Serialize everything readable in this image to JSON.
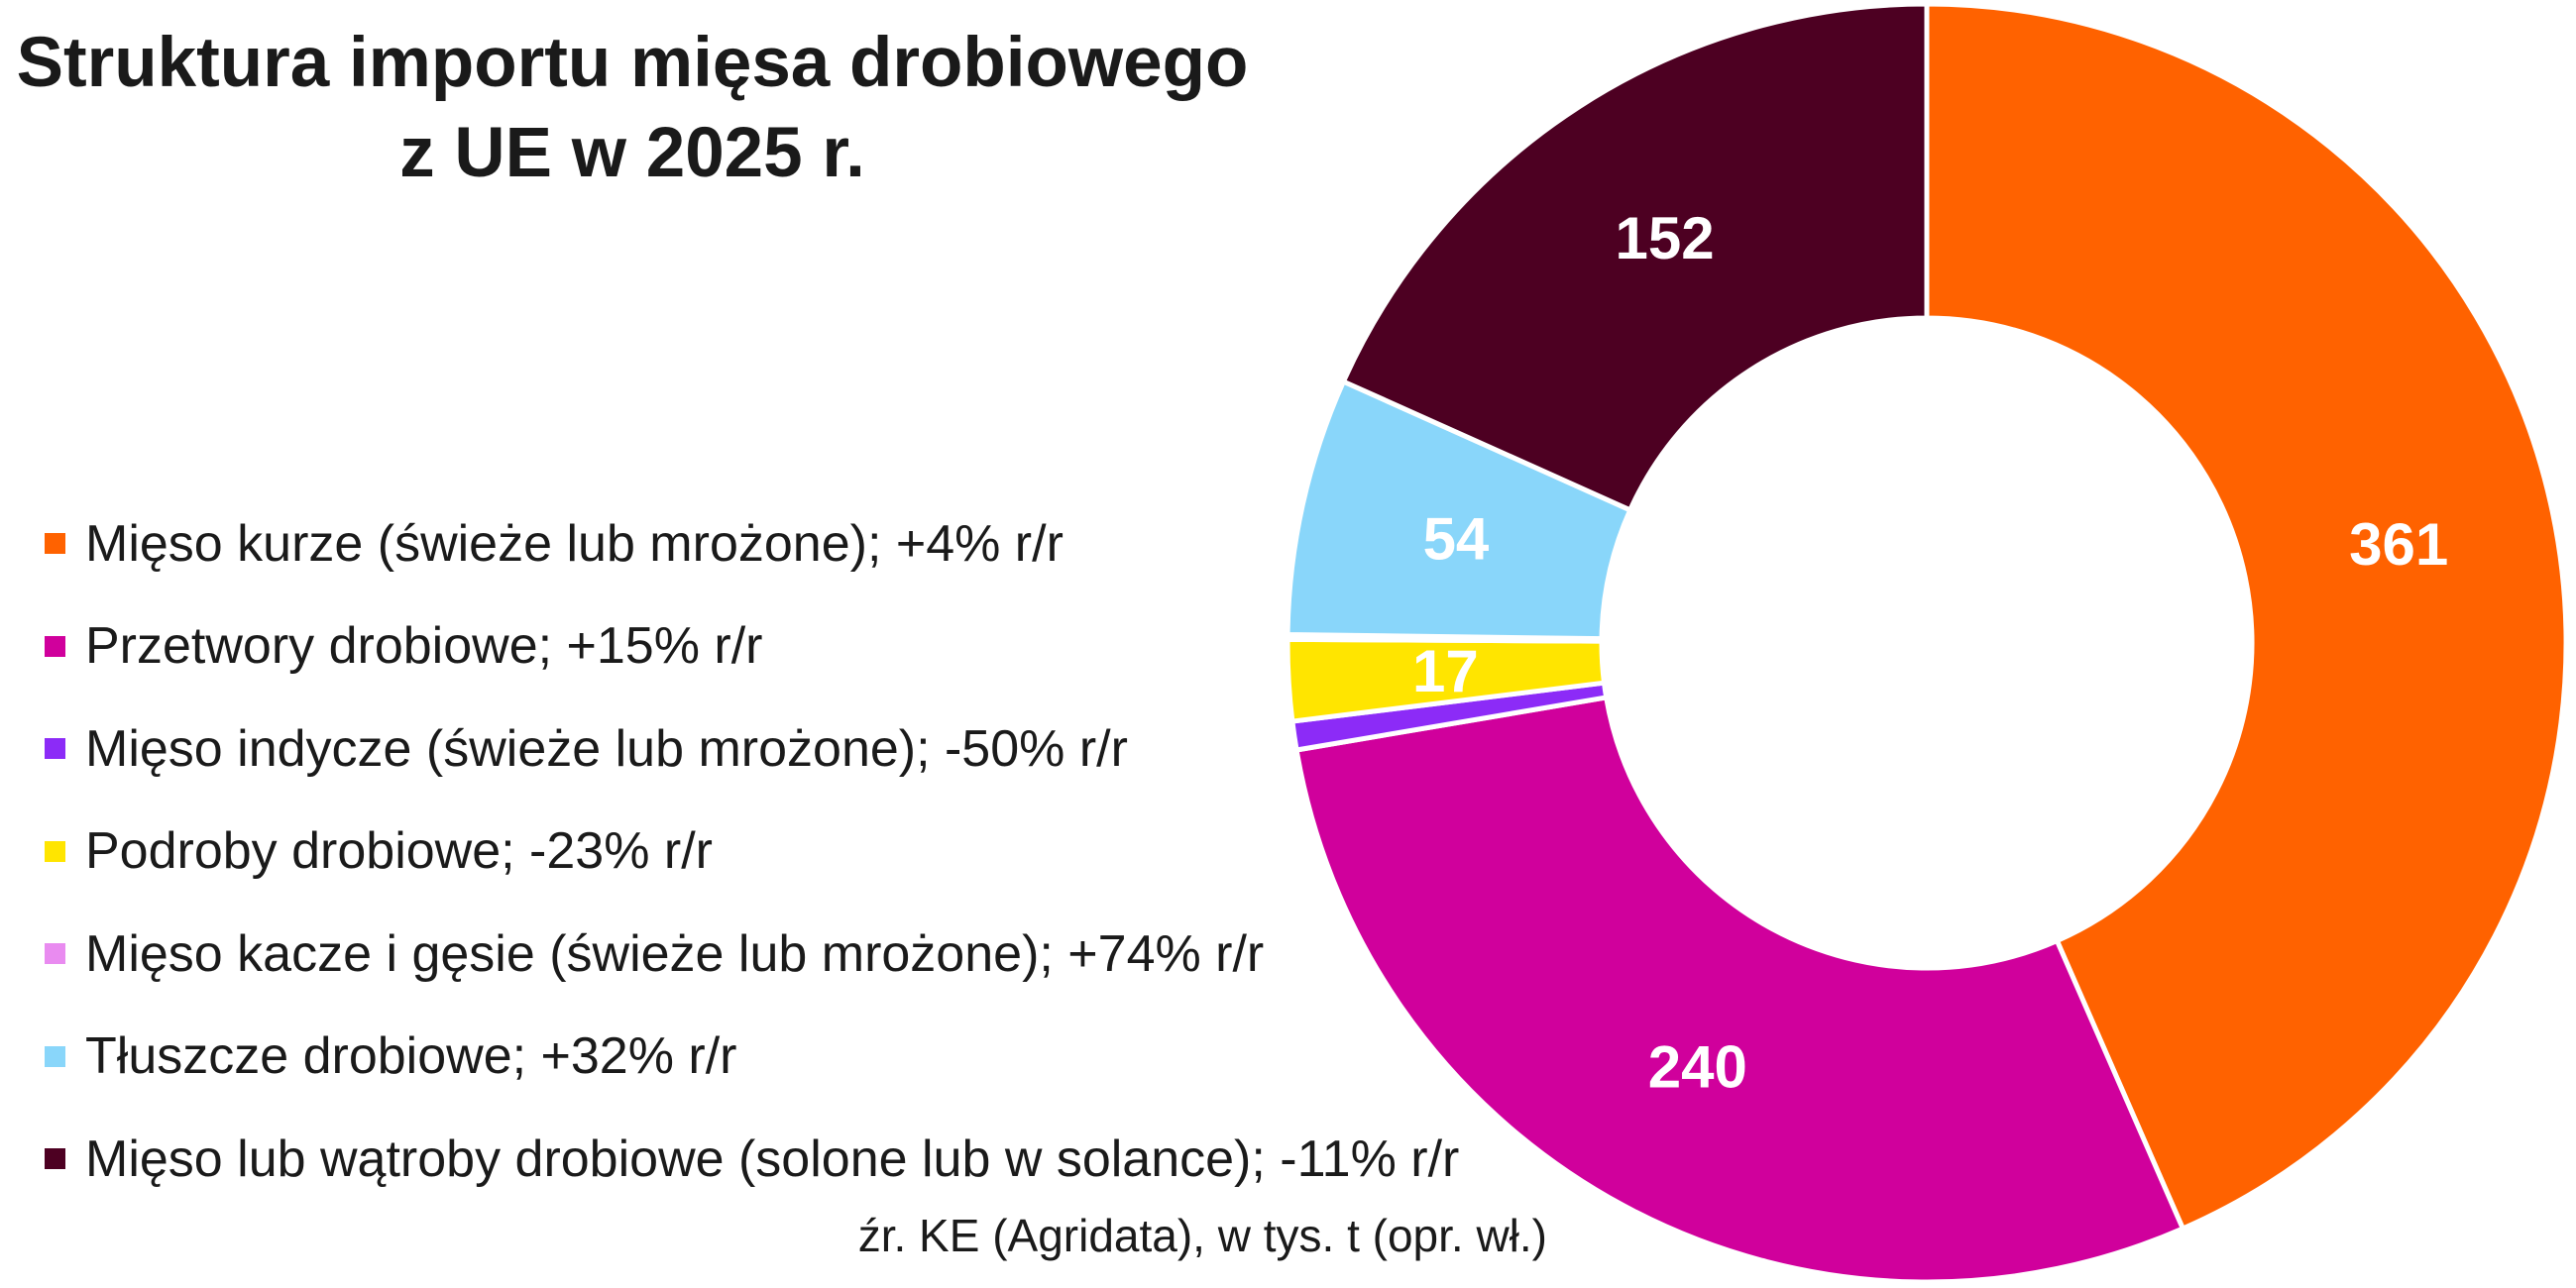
{
  "chart_data": {
    "type": "pie",
    "variant": "donut",
    "start": "top",
    "direction": "clockwise",
    "legend_position": "left",
    "title_lines": [
      "Struktura importu mięsa drobiowego",
      "z UE w 2025 r."
    ],
    "source": "źr. KE (Agridata), w tys. t (opr. wł.)",
    "separator_color": "#FFFFFF",
    "label_color": "#FFFFFF",
    "slices": [
      {
        "label": "Mięso kurze (świeże lub mrożone); +4% r/r",
        "value": 361,
        "data_label": "361",
        "color": "#FF6200"
      },
      {
        "label": "Przetwory drobiowe; +15% r/r",
        "value": 240,
        "data_label": "240",
        "color": "#D0009C"
      },
      {
        "label": "Mięso indycze (świeże lub mrożone); -50% r/r",
        "value": 6,
        "data_label": "",
        "color": "#8C2BF7"
      },
      {
        "label": "Podroby drobiowe; -23% r/r",
        "value": 17,
        "data_label": "17",
        "color": "#FFE500"
      },
      {
        "label": "Mięso kacze i gęsie (świeże lub mrożone); +74% r/r",
        "value": 1,
        "data_label": "",
        "color": "#E98BF0"
      },
      {
        "label": "Tłuszcze drobiowe; +32% r/r",
        "value": 54,
        "data_label": "54",
        "color": "#89D6FA"
      },
      {
        "label": "Mięso lub wątroby drobiowe (solone lub w solance); -11% r/r",
        "value": 152,
        "data_label": "152",
        "color": "#4D0022"
      }
    ]
  }
}
